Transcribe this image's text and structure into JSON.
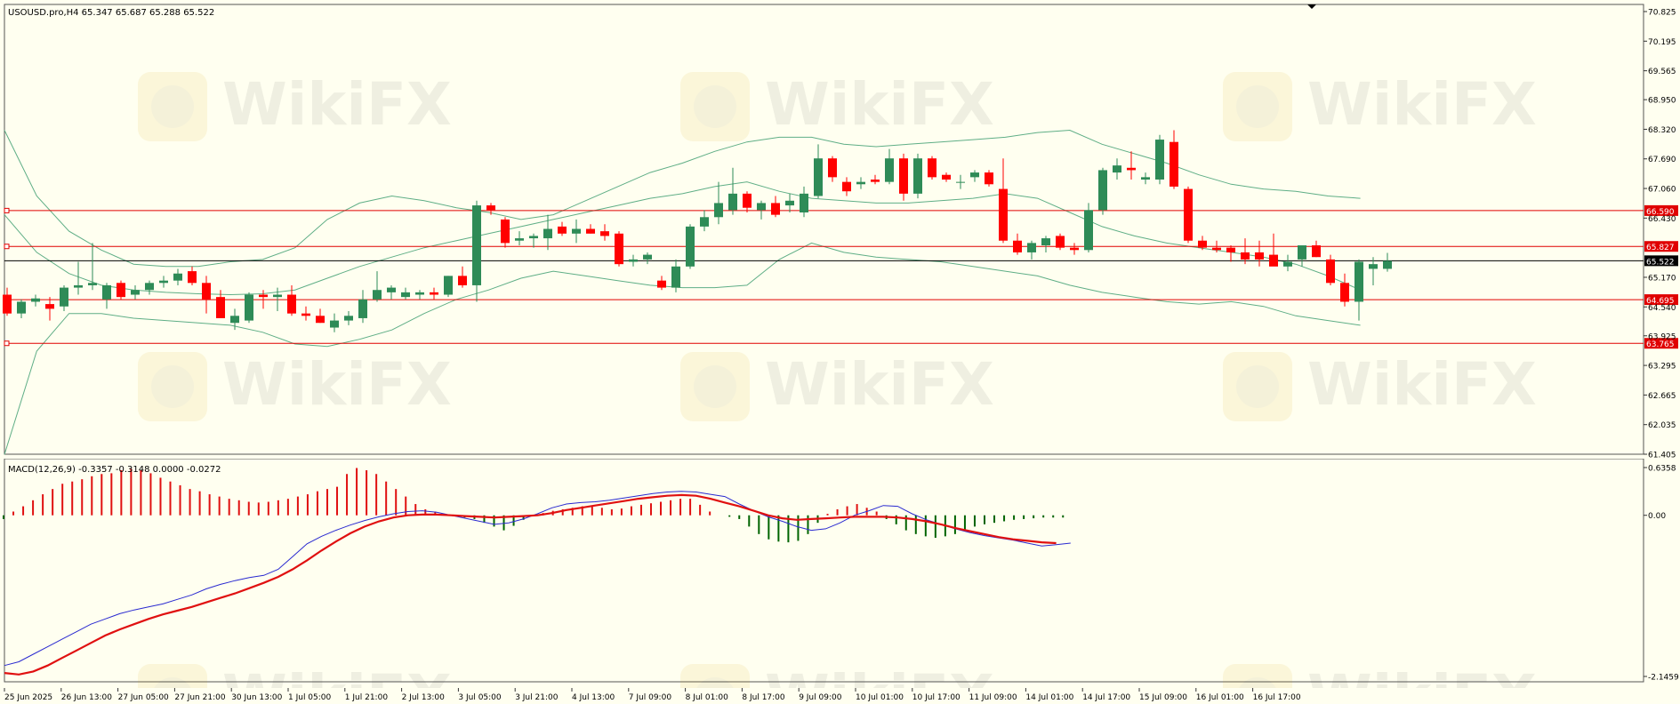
{
  "header": {
    "symbol_info": "USOUSD.pro,H4  65.347 65.687 65.288 65.522",
    "macd_info": "MACD(12,26,9) -0.3357 -0.3148 0.0000 -0.0272"
  },
  "watermark": {
    "text": "WikiFX"
  },
  "colors": {
    "background": "#fffff0",
    "bull": "#2e8b57",
    "bear": "#ff0000",
    "bollinger": "#5fae86",
    "level_line": "#e00000",
    "macd_line": "#2a2ad0",
    "signal_line": "#e01010",
    "price_line": "#000000"
  },
  "price_axis": {
    "ticks": [
      "70.825",
      "70.195",
      "69.565",
      "68.950",
      "68.320",
      "67.690",
      "67.060",
      "66.430",
      "65.170",
      "64.540",
      "63.925",
      "63.295",
      "62.665",
      "62.035",
      "61.405"
    ]
  },
  "macd_axis": {
    "ticks": [
      "0.6358",
      "0.00",
      "-2.1459"
    ]
  },
  "time_axis": {
    "labels": [
      "25 Jun 2025",
      "26 Jun 13:00",
      "27 Jun 05:00",
      "27 Jun 21:00",
      "30 Jun 13:00",
      "1 Jul 05:00",
      "1 Jul 21:00",
      "2 Jul 13:00",
      "3 Jul 05:00",
      "3 Jul 21:00",
      "4 Jul 13:00",
      "7 Jul 09:00",
      "8 Jul 01:00",
      "8 Jul 17:00",
      "9 Jul 09:00",
      "10 Jul 01:00",
      "10 Jul 17:00",
      "11 Jul 09:00",
      "14 Jul 01:00",
      "14 Jul 17:00",
      "15 Jul 09:00",
      "16 Jul 01:00",
      "16 Jul 17:00"
    ]
  },
  "levels": [
    {
      "label": "66.590",
      "value": 66.59
    },
    {
      "label": "65.827",
      "value": 65.827
    },
    {
      "label": "64.695",
      "value": 64.695
    },
    {
      "label": "63.765",
      "value": 63.765
    }
  ],
  "current_price": {
    "label": "65.522",
    "value": 65.522
  },
  "chart_data": {
    "type": "candlestick",
    "symbol": "USOUSD.pro",
    "timeframe": "H4",
    "ylim": [
      61.405,
      70.825
    ],
    "candles": [
      [
        64.8,
        64.95,
        64.35,
        64.4
      ],
      [
        64.4,
        64.7,
        64.3,
        64.65
      ],
      [
        64.65,
        64.8,
        64.55,
        64.72
      ],
      [
        64.6,
        64.75,
        64.25,
        64.5
      ],
      [
        64.55,
        65.0,
        64.45,
        64.95
      ],
      [
        64.95,
        65.5,
        64.8,
        65.0
      ],
      [
        65.0,
        65.9,
        64.9,
        65.05
      ],
      [
        64.7,
        65.05,
        64.5,
        65.0
      ],
      [
        65.05,
        65.1,
        64.7,
        64.75
      ],
      [
        64.8,
        65.0,
        64.7,
        64.9
      ],
      [
        64.9,
        65.1,
        64.8,
        65.05
      ],
      [
        65.05,
        65.2,
        64.95,
        65.1
      ],
      [
        65.1,
        65.35,
        65.0,
        65.25
      ],
      [
        65.3,
        65.4,
        65.0,
        65.05
      ],
      [
        65.05,
        65.2,
        64.4,
        64.7
      ],
      [
        64.75,
        64.9,
        64.35,
        64.3
      ],
      [
        64.2,
        64.5,
        64.05,
        64.35
      ],
      [
        64.25,
        64.85,
        64.2,
        64.8
      ],
      [
        64.8,
        64.9,
        64.5,
        64.75
      ],
      [
        64.75,
        64.95,
        64.45,
        64.8
      ],
      [
        64.8,
        65.0,
        64.35,
        64.4
      ],
      [
        64.4,
        64.55,
        64.25,
        64.35
      ],
      [
        64.35,
        64.5,
        64.2,
        64.2
      ],
      [
        64.1,
        64.4,
        64.0,
        64.25
      ],
      [
        64.25,
        64.45,
        64.15,
        64.35
      ],
      [
        64.3,
        64.9,
        64.2,
        64.7
      ],
      [
        64.7,
        65.3,
        64.65,
        64.9
      ],
      [
        64.85,
        65.0,
        64.7,
        64.95
      ],
      [
        64.75,
        64.95,
        64.7,
        64.85
      ],
      [
        64.8,
        64.9,
        64.7,
        64.85
      ],
      [
        64.85,
        64.95,
        64.7,
        64.8
      ],
      [
        64.8,
        65.2,
        64.75,
        65.2
      ],
      [
        65.2,
        65.4,
        64.95,
        65.0
      ],
      [
        65.0,
        66.8,
        64.65,
        66.7
      ],
      [
        66.7,
        66.75,
        66.5,
        66.6
      ],
      [
        66.4,
        66.45,
        65.8,
        65.9
      ],
      [
        65.95,
        66.15,
        65.85,
        66.0
      ],
      [
        66.0,
        66.1,
        65.8,
        66.05
      ],
      [
        66.0,
        66.5,
        65.75,
        66.2
      ],
      [
        66.25,
        66.35,
        66.05,
        66.1
      ],
      [
        66.1,
        66.4,
        65.9,
        66.2
      ],
      [
        66.2,
        66.3,
        66.1,
        66.1
      ],
      [
        66.15,
        66.3,
        65.95,
        66.05
      ],
      [
        66.1,
        66.15,
        65.4,
        65.45
      ],
      [
        65.5,
        65.65,
        65.4,
        65.55
      ],
      [
        65.55,
        65.7,
        65.45,
        65.65
      ],
      [
        65.1,
        65.2,
        64.9,
        64.95
      ],
      [
        64.95,
        65.55,
        64.85,
        65.4
      ],
      [
        65.4,
        66.3,
        65.35,
        66.25
      ],
      [
        66.25,
        66.6,
        66.15,
        66.45
      ],
      [
        66.45,
        67.2,
        66.3,
        66.75
      ],
      [
        66.6,
        67.5,
        66.5,
        66.95
      ],
      [
        66.95,
        67.0,
        66.55,
        66.65
      ],
      [
        66.6,
        66.8,
        66.4,
        66.75
      ],
      [
        66.75,
        66.9,
        66.45,
        66.5
      ],
      [
        66.7,
        66.95,
        66.55,
        66.8
      ],
      [
        66.55,
        67.1,
        66.45,
        66.95
      ],
      [
        66.9,
        68.0,
        66.85,
        67.7
      ],
      [
        67.7,
        67.75,
        67.2,
        67.3
      ],
      [
        67.2,
        67.3,
        66.9,
        67.0
      ],
      [
        67.15,
        67.3,
        67.05,
        67.2
      ],
      [
        67.25,
        67.35,
        67.15,
        67.2
      ],
      [
        67.2,
        67.9,
        67.15,
        67.7
      ],
      [
        67.7,
        67.8,
        66.8,
        66.95
      ],
      [
        66.95,
        67.8,
        66.85,
        67.7
      ],
      [
        67.7,
        67.75,
        67.25,
        67.3
      ],
      [
        67.35,
        67.4,
        67.2,
        67.25
      ],
      [
        67.2,
        67.35,
        67.05,
        67.2
      ],
      [
        67.3,
        67.45,
        67.2,
        67.4
      ],
      [
        67.4,
        67.45,
        67.1,
        67.15
      ],
      [
        67.05,
        67.7,
        65.9,
        65.95
      ],
      [
        65.95,
        66.1,
        65.65,
        65.7
      ],
      [
        65.7,
        65.95,
        65.55,
        65.9
      ],
      [
        65.85,
        66.05,
        65.7,
        66.0
      ],
      [
        66.05,
        66.1,
        65.75,
        65.8
      ],
      [
        65.8,
        65.9,
        65.65,
        65.75
      ],
      [
        65.75,
        66.75,
        65.7,
        66.6
      ],
      [
        66.6,
        67.5,
        66.5,
        67.45
      ],
      [
        67.4,
        67.7,
        67.25,
        67.55
      ],
      [
        67.5,
        67.85,
        67.25,
        67.45
      ],
      [
        67.25,
        67.4,
        67.15,
        67.3
      ],
      [
        67.25,
        68.2,
        67.15,
        68.1
      ],
      [
        68.05,
        68.3,
        67.05,
        67.1
      ],
      [
        67.05,
        67.1,
        65.9,
        65.95
      ],
      [
        65.95,
        66.05,
        65.75,
        65.8
      ],
      [
        65.8,
        65.95,
        65.7,
        65.75
      ],
      [
        65.8,
        65.85,
        65.5,
        65.7
      ],
      [
        65.7,
        66.0,
        65.45,
        65.55
      ],
      [
        65.7,
        65.95,
        65.4,
        65.55
      ],
      [
        65.65,
        66.1,
        65.45,
        65.4
      ],
      [
        65.4,
        65.65,
        65.3,
        65.5
      ],
      [
        65.55,
        65.85,
        65.4,
        65.85
      ],
      [
        65.85,
        65.95,
        65.6,
        65.6
      ],
      [
        65.55,
        65.65,
        65.0,
        65.05
      ],
      [
        65.05,
        65.25,
        64.55,
        64.65
      ],
      [
        64.65,
        65.55,
        64.25,
        65.5
      ],
      [
        65.35,
        65.6,
        65.0,
        65.45
      ],
      [
        65.35,
        65.69,
        65.29,
        65.52
      ]
    ],
    "bollinger_upper": [
      68.3,
      66.9,
      66.15,
      65.75,
      65.45,
      65.4,
      65.4,
      65.5,
      65.55,
      65.8,
      66.4,
      66.75,
      66.9,
      66.8,
      66.65,
      66.55,
      66.4,
      66.5,
      66.8,
      67.1,
      67.4,
      67.6,
      67.85,
      68.05,
      68.15,
      68.15,
      68.0,
      67.95,
      68.0,
      68.05,
      68.1,
      68.15,
      68.25,
      68.3,
      68.0,
      67.8,
      67.6,
      67.35,
      67.15,
      67.05,
      67.0,
      66.9,
      66.85
    ],
    "bollinger_mid": [
      66.5,
      65.7,
      65.25,
      65.0,
      64.9,
      64.85,
      64.82,
      64.8,
      64.82,
      64.9,
      65.15,
      65.4,
      65.6,
      65.8,
      65.95,
      66.1,
      66.25,
      66.4,
      66.55,
      66.7,
      66.85,
      66.95,
      67.1,
      67.2,
      67.0,
      66.85,
      66.8,
      66.75,
      66.75,
      66.8,
      66.85,
      66.95,
      66.85,
      66.55,
      66.25,
      66.05,
      65.9,
      65.8,
      65.7,
      65.6,
      65.45,
      65.2,
      64.9
    ],
    "bollinger_lower": [
      61.4,
      63.6,
      64.4,
      64.4,
      64.3,
      64.25,
      64.2,
      64.15,
      64.0,
      63.75,
      63.7,
      63.85,
      64.05,
      64.4,
      64.7,
      64.9,
      65.15,
      65.3,
      65.2,
      65.1,
      65.0,
      64.95,
      64.95,
      65.0,
      65.55,
      65.9,
      65.7,
      65.6,
      65.55,
      65.5,
      65.4,
      65.3,
      65.2,
      65.0,
      64.85,
      64.75,
      64.65,
      64.6,
      64.65,
      64.55,
      64.35,
      64.25,
      64.15
    ],
    "macd": {
      "ylim": [
        -2.1459,
        0.6358
      ],
      "histogram": [
        -0.05,
        0.05,
        0.12,
        0.2,
        0.28,
        0.35,
        0.42,
        0.45,
        0.48,
        0.52,
        0.55,
        0.56,
        0.6,
        0.62,
        0.6,
        0.56,
        0.5,
        0.45,
        0.4,
        0.35,
        0.32,
        0.28,
        0.25,
        0.22,
        0.2,
        0.18,
        0.17,
        0.18,
        0.2,
        0.22,
        0.25,
        0.28,
        0.32,
        0.35,
        0.38,
        0.55,
        0.63,
        0.6,
        0.55,
        0.45,
        0.35,
        0.25,
        0.15,
        0.08,
        0.05,
        0.02,
        -0.01,
        -0.03,
        -0.05,
        -0.1,
        -0.15,
        -0.2,
        -0.14,
        -0.06,
        -0.01,
        0.03,
        0.06,
        0.08,
        0.1,
        0.12,
        0.12,
        0.1,
        0.08,
        0.09,
        0.12,
        0.14,
        0.16,
        0.18,
        0.2,
        0.22,
        0.22,
        0.14,
        0.05,
        0.0,
        -0.02,
        -0.05,
        -0.15,
        -0.25,
        -0.32,
        -0.35,
        -0.36,
        -0.34,
        -0.25,
        -0.1,
        0.02,
        0.08,
        0.12,
        0.15,
        0.1,
        0.05,
        -0.05,
        -0.12,
        -0.2,
        -0.25,
        -0.28,
        -0.3,
        -0.28,
        -0.25,
        -0.2,
        -0.15,
        -0.12,
        -0.1,
        -0.08,
        -0.06,
        -0.05,
        -0.04,
        -0.03,
        -0.03,
        -0.03
      ],
      "macd_line": [
        -2.0,
        -1.95,
        -1.85,
        -1.75,
        -1.65,
        -1.55,
        -1.45,
        -1.38,
        -1.31,
        -1.26,
        -1.22,
        -1.18,
        -1.12,
        -1.06,
        -0.98,
        -0.92,
        -0.87,
        -0.83,
        -0.8,
        -0.72,
        -0.55,
        -0.38,
        -0.28,
        -0.2,
        -0.13,
        -0.07,
        -0.02,
        0.02,
        0.05,
        0.06,
        0.04,
        0.0,
        -0.04,
        -0.08,
        -0.12,
        -0.1,
        -0.05,
        0.02,
        0.1,
        0.15,
        0.17,
        0.18,
        0.2,
        0.23,
        0.26,
        0.29,
        0.31,
        0.32,
        0.31,
        0.28,
        0.25,
        0.15,
        0.06,
        -0.02,
        -0.08,
        -0.15,
        -0.2,
        -0.18,
        -0.1,
        0.0,
        0.06,
        0.13,
        0.12,
        0.02,
        -0.06,
        -0.12,
        -0.18,
        -0.23,
        -0.27,
        -0.3,
        -0.33,
        -0.37,
        -0.41,
        -0.39,
        -0.37
      ],
      "signal_line": [
        -2.1,
        -2.12,
        -2.08,
        -2.0,
        -1.9,
        -1.8,
        -1.7,
        -1.6,
        -1.52,
        -1.45,
        -1.38,
        -1.32,
        -1.27,
        -1.22,
        -1.16,
        -1.1,
        -1.04,
        -0.97,
        -0.9,
        -0.82,
        -0.72,
        -0.6,
        -0.47,
        -0.35,
        -0.24,
        -0.15,
        -0.08,
        -0.03,
        0.0,
        0.01,
        0.01,
        0.0,
        -0.01,
        -0.02,
        -0.03,
        -0.02,
        -0.01,
        0.0,
        0.03,
        0.07,
        0.1,
        0.13,
        0.16,
        0.19,
        0.22,
        0.24,
        0.26,
        0.27,
        0.26,
        0.22,
        0.17,
        0.12,
        0.06,
        0.0,
        -0.04,
        -0.06,
        -0.05,
        -0.04,
        -0.03,
        -0.02,
        -0.02,
        -0.02,
        -0.03,
        -0.05,
        -0.08,
        -0.12,
        -0.17,
        -0.21,
        -0.25,
        -0.29,
        -0.32,
        -0.34,
        -0.36,
        -0.37
      ]
    }
  }
}
